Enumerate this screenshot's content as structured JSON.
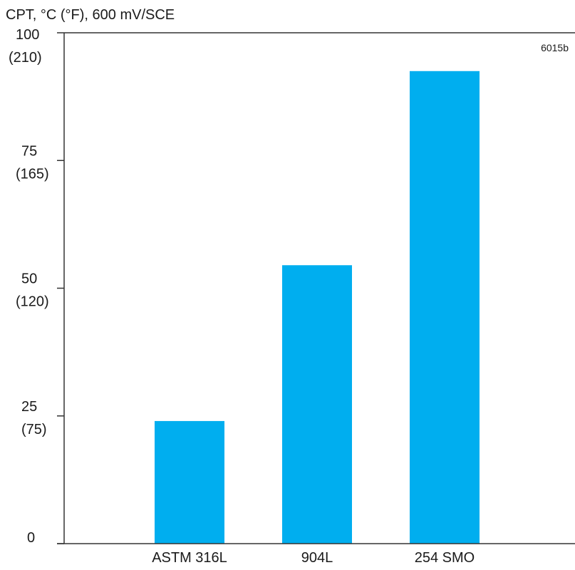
{
  "chart_data": {
    "type": "bar",
    "title": "CPT, °C (°F), 600 mV/SCE",
    "figure_id": "6015b",
    "categories": [
      "ASTM 316L",
      "904L",
      "254 SMO"
    ],
    "values": [
      24,
      54.5,
      92.5
    ],
    "ylim": [
      0,
      100
    ],
    "yticks": [
      {
        "value": 0,
        "label": "0",
        "sublabel": ""
      },
      {
        "value": 25,
        "label": "25",
        "sublabel": "(75)"
      },
      {
        "value": 50,
        "label": "50",
        "sublabel": "(120)"
      },
      {
        "value": 75,
        "label": "75",
        "sublabel": "(165)"
      },
      {
        "value": 100,
        "label": "100",
        "sublabel": "(210)"
      }
    ],
    "bar_color": "#00aeef",
    "grid": false,
    "legend": "none"
  }
}
